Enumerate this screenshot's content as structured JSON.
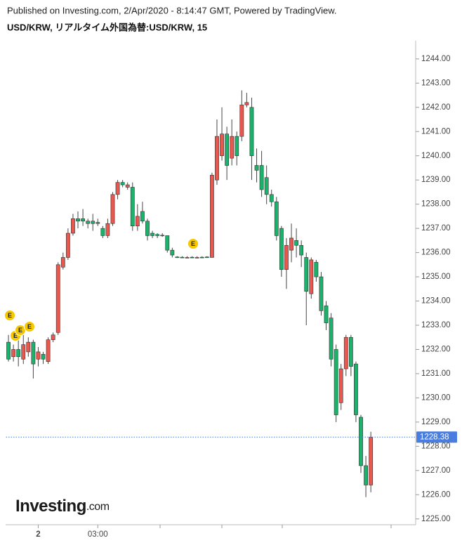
{
  "header": "Published on Investing.com, 2/Apr/2020 - 8:14:47 GMT, Powered by TradingView.",
  "chart_data": {
    "type": "candlestick",
    "title": "USD/KRW, リアルタイム外国為替:USD/KRW, 15",
    "categories": [
      null,
      null,
      null,
      null,
      null,
      null,
      "2",
      null,
      null,
      null,
      null,
      null,
      null,
      null,
      null,
      null,
      null,
      null,
      "03:00",
      null,
      null,
      null,
      null,
      null,
      null,
      null,
      null,
      null,
      null,
      null,
      null,
      null,
      null,
      null,
      null,
      null,
      null,
      null,
      null,
      null,
      null,
      null,
      null,
      null,
      null,
      null,
      null,
      null,
      null,
      null,
      null,
      null,
      null,
      null,
      null,
      null,
      null,
      null,
      null,
      null,
      null,
      null,
      null,
      null,
      null,
      null,
      null,
      null,
      null,
      null,
      null,
      null,
      null,
      null
    ],
    "open": [
      1232.3,
      1231.7,
      1232.0,
      1231.6,
      1231.9,
      1232.3,
      1231.6,
      1231.8,
      1231.5,
      1232.4,
      1232.7,
      1235.4,
      1235.8,
      1236.8,
      1237.4,
      1237.4,
      1237.3,
      1237.3,
      1237.25,
      1237.0,
      1236.7,
      1237.2,
      1238.4,
      1238.9,
      1238.7,
      1238.7,
      1237.1,
      1237.7,
      1237.3,
      1236.8,
      1236.75,
      1236.72,
      1236.7,
      1236.1,
      1235.82,
      1235.81,
      1235.8,
      1235.81,
      1235.8,
      1235.81,
      1235.82,
      1235.8,
      1239.0,
      1240.0,
      1240.9,
      1239.9,
      1240.8,
      1240.8,
      1242.1,
      1242.0,
      1239.6,
      1239.6,
      1239.1,
      1238.4,
      1238.1,
      1237.0,
      1235.3,
      1236.1,
      1236.5,
      1236.3,
      1235.8,
      1234.3,
      1235.6,
      1235.0,
      1233.8,
      1233.3,
      1232.0,
      1229.8,
      1231.2,
      1232.5,
      1231.4,
      1229.2,
      1227.2,
      1226.4
    ],
    "high": [
      1232.6,
      1232.2,
      1232.5,
      1232.6,
      1232.5,
      1232.4,
      1232.1,
      1231.9,
      1232.5,
      1232.7,
      1235.6,
      1236.0,
      1237.0,
      1237.6,
      1237.7,
      1237.8,
      1237.4,
      1237.6,
      1237.4,
      1237.1,
      1237.4,
      1238.5,
      1239.0,
      1239.0,
      1238.9,
      1238.9,
      1238.0,
      1238.1,
      1237.4,
      1236.9,
      1236.8,
      1236.8,
      1236.7,
      1236.2,
      1235.85,
      1235.85,
      1235.85,
      1235.85,
      1235.85,
      1235.85,
      1235.85,
      1239.3,
      1241.5,
      1242.0,
      1241.2,
      1241.5,
      1241.0,
      1242.7,
      1242.6,
      1242.4,
      1240.3,
      1240.2,
      1239.6,
      1238.6,
      1238.3,
      1237.1,
      1236.6,
      1237.2,
      1237.0,
      1236.5,
      1236.0,
      1235.8,
      1235.7,
      1235.2,
      1234.0,
      1233.5,
      1232.2,
      1231.4,
      1232.6,
      1232.6,
      1231.5,
      1229.3,
      1227.6,
      1228.6
    ],
    "low": [
      1231.5,
      1231.5,
      1231.3,
      1231.4,
      1231.7,
      1230.8,
      1231.3,
      1231.4,
      1231.4,
      1232.3,
      1232.6,
      1235.3,
      1235.7,
      1236.7,
      1237.0,
      1237.1,
      1237.0,
      1236.9,
      1237.1,
      1236.6,
      1236.6,
      1237.1,
      1238.2,
      1238.7,
      1238.6,
      1236.9,
      1236.9,
      1237.2,
      1236.5,
      1236.6,
      1236.6,
      1236.65,
      1236.0,
      1235.8,
      1235.78,
      1235.78,
      1235.78,
      1235.78,
      1235.78,
      1235.78,
      1235.78,
      1235.8,
      1238.8,
      1239.8,
      1239.0,
      1239.6,
      1239.6,
      1240.6,
      1242.0,
      1239.0,
      1238.9,
      1238.3,
      1238.0,
      1237.9,
      1236.5,
      1235.0,
      1234.5,
      1235.6,
      1235.8,
      1235.4,
      1233.0,
      1234.1,
      1234.8,
      1233.4,
      1232.8,
      1231.3,
      1229.0,
      1229.5,
      1230.9,
      1230.9,
      1229.0,
      1226.9,
      1225.9,
      1226.1
    ],
    "close": [
      1231.6,
      1232.0,
      1231.7,
      1232.2,
      1232.3,
      1231.4,
      1231.9,
      1231.6,
      1232.4,
      1232.6,
      1235.5,
      1235.8,
      1236.8,
      1237.4,
      1237.3,
      1237.3,
      1237.2,
      1237.2,
      1237.2,
      1236.7,
      1237.2,
      1238.4,
      1238.9,
      1238.8,
      1238.8,
      1237.1,
      1237.5,
      1237.3,
      1236.7,
      1236.7,
      1236.7,
      1236.7,
      1236.1,
      1235.9,
      1235.8,
      1235.8,
      1235.8,
      1235.8,
      1235.8,
      1235.8,
      1235.8,
      1239.2,
      1240.8,
      1240.9,
      1239.6,
      1240.8,
      1240.0,
      1242.1,
      1242.2,
      1240.0,
      1239.4,
      1238.6,
      1238.4,
      1238.1,
      1236.7,
      1235.3,
      1236.3,
      1236.6,
      1236.3,
      1235.9,
      1234.4,
      1235.7,
      1235.0,
      1233.6,
      1233.1,
      1231.6,
      1229.3,
      1231.2,
      1232.5,
      1231.3,
      1229.3,
      1227.2,
      1226.4,
      1228.38
    ],
    "up_color": "#e8584f",
    "down_color": "#1cb26b",
    "last_price": {
      "value": 1228.38,
      "label": "1228.38"
    },
    "event_label": "E",
    "ylim": [
      1224.76,
      1244.75
    ],
    "yticks": [
      {
        "value": 1225,
        "label": "1225.00"
      },
      {
        "value": 1226,
        "label": "1226.00"
      },
      {
        "value": 1227,
        "label": "1227.00"
      },
      {
        "value": 1228,
        "label": "1228.00"
      },
      {
        "value": 1229,
        "label": "1229.00"
      },
      {
        "value": 1230,
        "label": "1230.00"
      },
      {
        "value": 1231,
        "label": "1231.00"
      },
      {
        "value": 1232,
        "label": "1232.00"
      },
      {
        "value": 1233,
        "label": "1233.00"
      },
      {
        "value": 1234,
        "label": "1234.00"
      },
      {
        "value": 1235,
        "label": "1235.00"
      },
      {
        "value": 1236,
        "label": "1236.00"
      },
      {
        "value": 1237,
        "label": "1237.00"
      },
      {
        "value": 1238,
        "label": "1238.00"
      },
      {
        "value": 1239,
        "label": "1239.00"
      },
      {
        "value": 1240,
        "label": "1240.00"
      },
      {
        "value": 1241,
        "label": "1241.00"
      },
      {
        "value": 1242,
        "label": "1242.00"
      },
      {
        "value": 1243,
        "label": "1243.00"
      },
      {
        "value": 1244,
        "label": "1244.00"
      }
    ],
    "logo": {
      "name": "Investing",
      "suffix": ".com"
    }
  }
}
